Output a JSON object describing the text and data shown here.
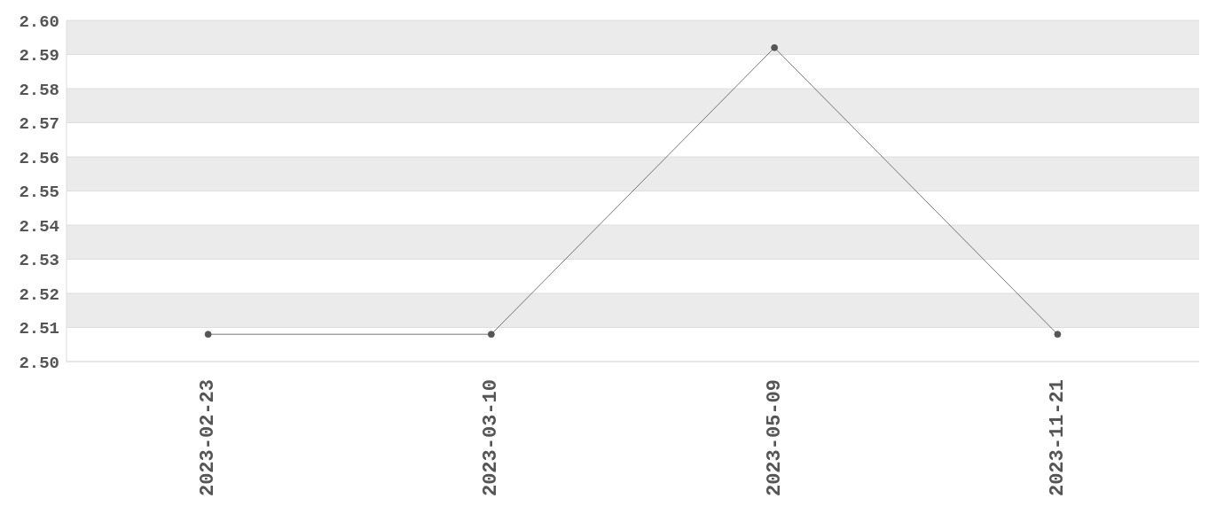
{
  "chart_data": {
    "type": "line",
    "categories": [
      "2023-02-23",
      "2023-03-10",
      "2023-05-09",
      "2023-11-21"
    ],
    "values": [
      2.508,
      2.508,
      2.592,
      2.508
    ],
    "color": "#555555",
    "ylim": [
      2.5,
      2.6
    ],
    "yticks": [
      {
        "value": 2.5,
        "label": "2.50"
      },
      2.51,
      2.52,
      2.53,
      2.54,
      2.55,
      2.56,
      2.57,
      2.58,
      2.59,
      {
        "value": 2.6,
        "label": "2.60"
      }
    ],
    "grid": "y",
    "marker": "circle",
    "line_style": "solid"
  }
}
